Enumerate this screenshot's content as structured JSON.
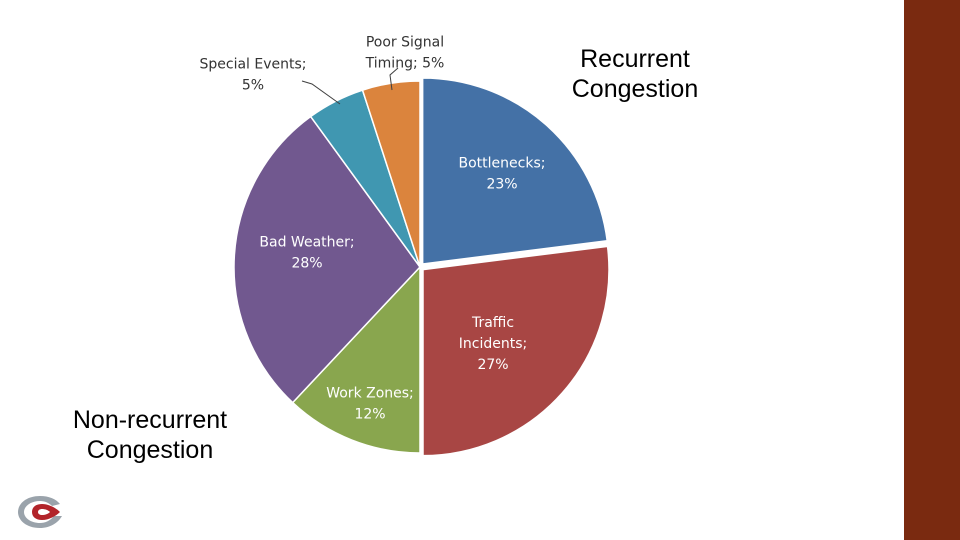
{
  "group_titles": {
    "recurrent": [
      "Recurrent",
      "Congestion"
    ],
    "non_recurrent": [
      "Non-recurrent",
      "Congestion"
    ]
  },
  "colors": {
    "right_bar": "#7a2a10",
    "bottlenecks": "#4471a6",
    "traffic_incidents": "#a84644",
    "work_zones": "#89a64e",
    "bad_weather": "#71588f",
    "special_events": "#4097b1",
    "poor_signal_timing": "#db843d"
  },
  "logo": {
    "icon": "swirl-logo-icon"
  },
  "chart_data": {
    "type": "pie",
    "title": "",
    "start_angle_deg": 0,
    "direction": "clockwise",
    "slices": [
      {
        "label": "Bottlenecks; 23%",
        "lines": [
          "Bottlenecks;",
          "23%"
        ],
        "value": 23,
        "color": "#4471a6",
        "text_color": "light",
        "exploded": true
      },
      {
        "label": "Traffic Incidents; 27%",
        "lines": [
          "Traffic",
          "Incidents;",
          "27%"
        ],
        "value": 27,
        "color": "#a84644",
        "text_color": "light",
        "exploded": true
      },
      {
        "label": "Work Zones; 12%",
        "lines": [
          "Work Zones;",
          "12%"
        ],
        "value": 12,
        "color": "#89a64e",
        "text_color": "light",
        "exploded": false
      },
      {
        "label": "Bad Weather; 28%",
        "lines": [
          "Bad Weather;",
          "28%"
        ],
        "value": 28,
        "color": "#71588f",
        "text_color": "light",
        "exploded": false
      },
      {
        "label": "Special Events; 5%",
        "lines": [
          "Special Events;",
          "5%"
        ],
        "value": 5,
        "color": "#4097b1",
        "text_color": "dark",
        "exploded": false
      },
      {
        "label": "Poor Signal Timing; 5%",
        "lines": [
          "Poor Signal",
          "Timing; 5%"
        ],
        "value": 5,
        "color": "#db843d",
        "text_color": "dark",
        "exploded": false
      }
    ]
  }
}
